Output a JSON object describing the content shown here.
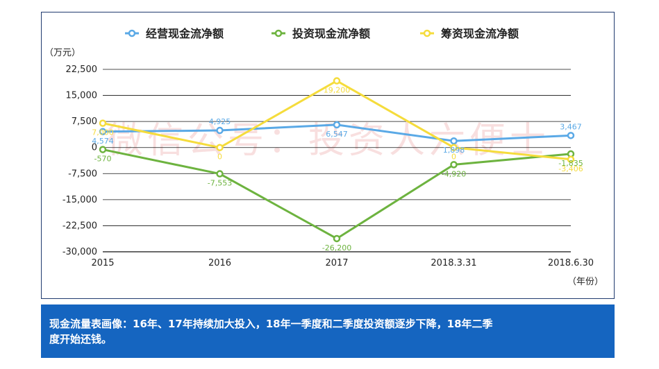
{
  "chart_data": {
    "type": "line",
    "categories": [
      "2015",
      "2016",
      "2017",
      "2018.3.31",
      "2018.6.30"
    ],
    "y_unit": "（万元）",
    "x_unit": "（年份）",
    "ylim": [
      -30000,
      22500
    ],
    "yticks": [
      22500,
      15000,
      7500,
      0,
      -7500,
      -15000,
      -22500,
      -30000
    ],
    "ytick_labels": [
      "22,500",
      "15,000",
      "7,500",
      "0",
      "-7,500",
      "-15,000",
      "-22,500",
      "-30,000"
    ],
    "grid": true,
    "legend_position": "top",
    "series": [
      {
        "name": "经营现金流净额",
        "color": "#5aa9e6",
        "values": [
          4574,
          4925,
          6547,
          1898,
          3467
        ],
        "labels": [
          "4,574",
          "4,925",
          "6,547",
          "1,898",
          "3,467"
        ],
        "label_pos": [
          "below",
          "above",
          "below",
          "below",
          "above"
        ]
      },
      {
        "name": "投资现金流净额",
        "color": "#6db33f",
        "values": [
          -570,
          -7553,
          -26200,
          -4920,
          -1835
        ],
        "labels": [
          "-570",
          "-7,553",
          "-26,200",
          "-4,920",
          "-1,835"
        ],
        "label_pos": [
          "below",
          "below",
          "below",
          "below",
          "below"
        ]
      },
      {
        "name": "筹资现金流净额",
        "color": "#f5dc3c",
        "values": [
          7000,
          0,
          19200,
          0,
          -3406
        ],
        "labels": [
          "7,000",
          "0",
          "19,200",
          "0",
          "-3,406"
        ],
        "label_pos": [
          "below",
          "below",
          "below",
          "below",
          "below"
        ]
      }
    ]
  },
  "watermark": "微信公号：投资人六便士",
  "summary": {
    "line1": "现金流量表画像：16年、17年持续加大投入，18年一季度和二季度投资额逐步下降，18年二季",
    "line2": "度开始还钱。"
  }
}
